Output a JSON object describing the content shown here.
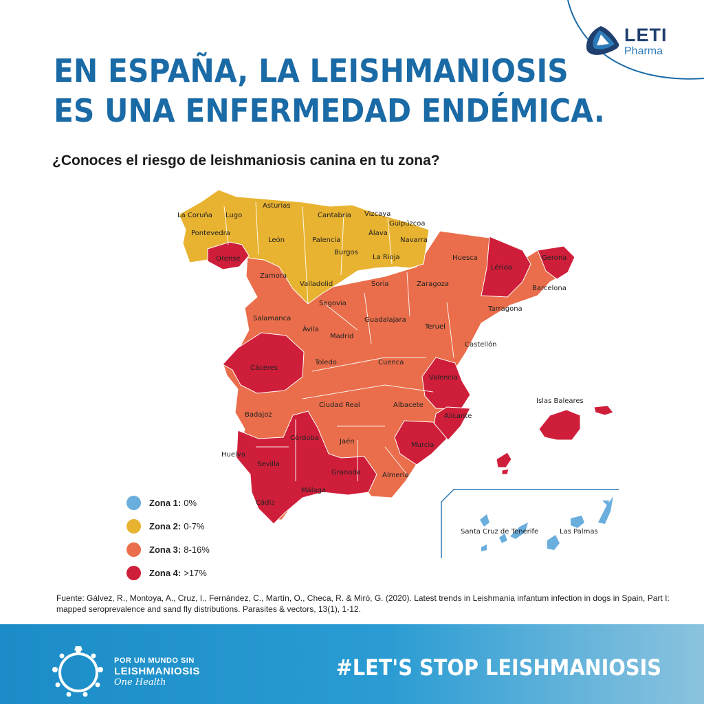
{
  "brand": {
    "name": "LETI",
    "sub": "Pharma"
  },
  "title": {
    "line1": "EN ESPAÑA, LA LEISHMANIOSIS",
    "line2": "ES UNA ENFERMEDAD ENDÉMICA."
  },
  "subtitle": "¿Conoces el riesgo de leishmaniosis canina en tu zona?",
  "colors": {
    "zona1": "#6aaede",
    "zona2": "#e8b330",
    "zona3": "#ea6e4b",
    "zona4": "#cf1e3a",
    "title": "#1a6aa6",
    "footer": "#2090c8"
  },
  "legend": [
    {
      "label": "Zona 1:",
      "value": "0%"
    },
    {
      "label": "Zona 2:",
      "value": "0-7%"
    },
    {
      "label": "Zona 3:",
      "value": "8-16%"
    },
    {
      "label": "Zona 4:",
      "value": ">17%"
    }
  ],
  "provinces": {
    "coruna": "La Coruña",
    "lugo": "Lugo",
    "asturias": "Asturias",
    "cantabria": "Cantabria",
    "vizcaya": "Vizcaya",
    "guipuzcoa": "Guipúzcoa",
    "pontevedra": "Pontevedra",
    "leon": "León",
    "palencia": "Palencia",
    "alava": "Álava",
    "navarra": "Navarra",
    "burgos": "Burgos",
    "orense": "Orense",
    "rioja": "La Rioja",
    "huesca": "Huesca",
    "lerida": "Lérida",
    "gerona": "Gerona",
    "zamora": "Zamora",
    "valladolid": "Valladolid",
    "soria": "Soria",
    "zaragoza": "Zaragoza",
    "barcelona": "Barcelona",
    "segovia": "Segovia",
    "tarragona": "Tarragona",
    "salamanca": "Salamanca",
    "guadalajara": "Guadalajara",
    "avila": "Ávila",
    "teruel": "Teruel",
    "madrid": "Madrid",
    "castellon": "Castellón",
    "caceres": "Cáceres",
    "toledo": "Toledo",
    "cuenca": "Cuenca",
    "valencia": "Valencia",
    "ciudadreal": "Ciudad Real",
    "albacete": "Albacete",
    "badajoz": "Badajoz",
    "alicante": "Alicante",
    "cordoba": "Córdoba",
    "jaen": "Jaén",
    "murcia": "Murcia",
    "huelva": "Huelva",
    "sevilla": "Sevilla",
    "granada": "Granada",
    "almeria": "Almería",
    "malaga": "Málaga",
    "cadiz": "Cádiz",
    "baleares": "Islas Baleares",
    "tenerife": "Santa Cruz de Tenerife",
    "laspalmas": "Las Palmas"
  },
  "source": "Fuente: Gálvez, R., Montoya, A., Cruz, I., Fernández, C., Martín, O., Checa, R. & Miró, G. (2020). Latest trends in Leishmania infantum infection in dogs in Spain, Part I: mapped seroprevalence and sand fly distributions. Parasites & vectors, 13(1), 1-12.",
  "footer": {
    "line1": "POR UN MUNDO SIN",
    "line2": "LEISHMANIOSIS",
    "line3": "One Health",
    "hashtag": "#LET'S STOP LEISHMANIOSIS"
  }
}
